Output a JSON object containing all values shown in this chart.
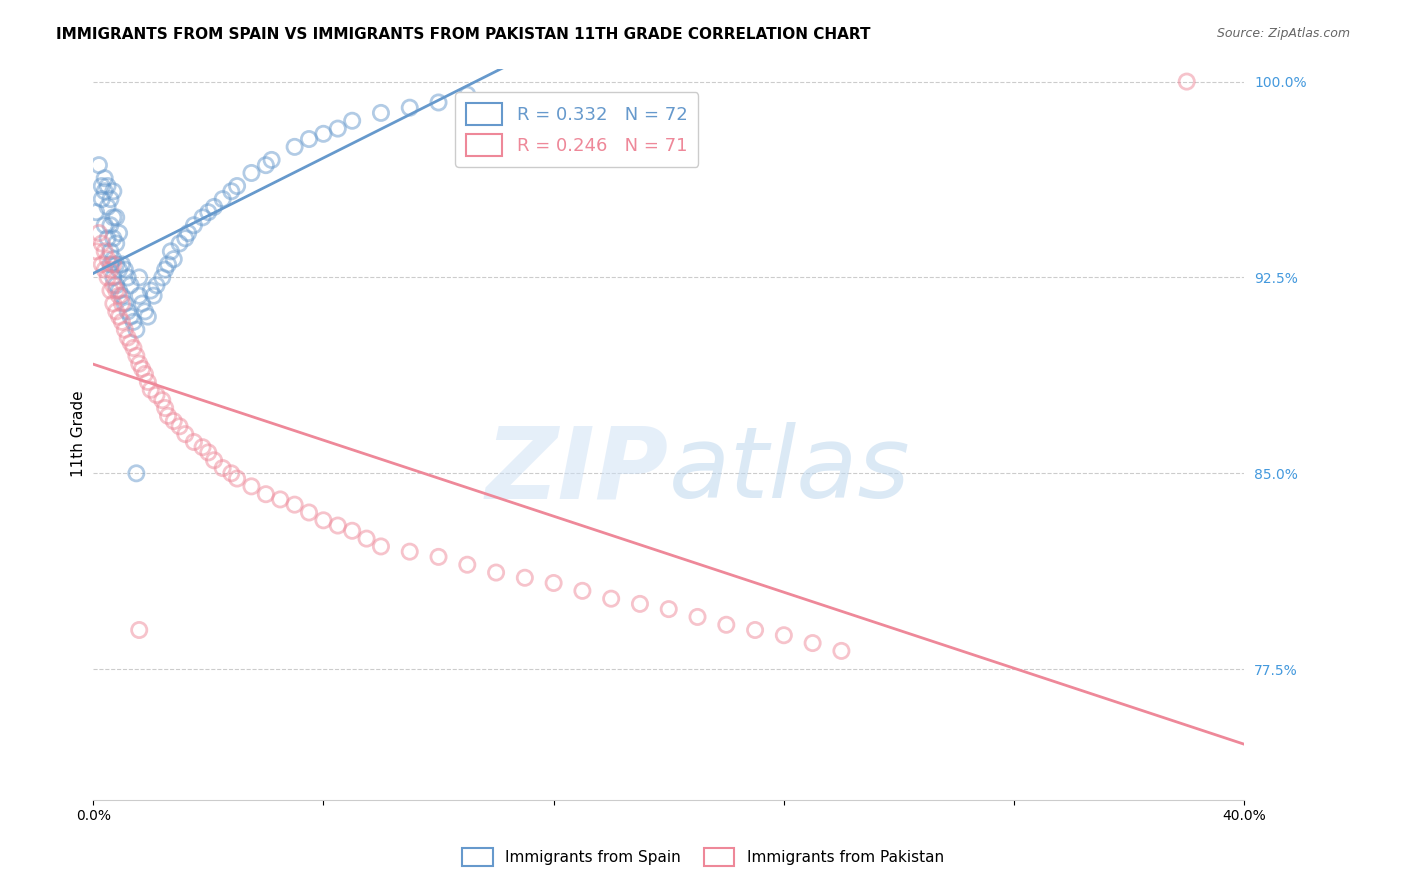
{
  "title": "IMMIGRANTS FROM SPAIN VS IMMIGRANTS FROM PAKISTAN 11TH GRADE CORRELATION CHART",
  "source": "Source: ZipAtlas.com",
  "ylabel": "11th Grade",
  "xlabel": "",
  "xlim": [
    0.0,
    0.4
  ],
  "ylim": [
    0.725,
    1.005
  ],
  "xticks": [
    0.0,
    0.08,
    0.16,
    0.24,
    0.32,
    0.4
  ],
  "xticklabels": [
    "0.0%",
    "",
    "",
    "",
    "",
    "40.0%"
  ],
  "yticks_right": [
    1.0,
    0.925,
    0.85,
    0.775
  ],
  "ytick_right_labels": [
    "100.0%",
    "92.5%",
    "85.0%",
    "77.5%"
  ],
  "grid_color": "#cccccc",
  "background_color": "#ffffff",
  "watermark_text": "ZIPatlas",
  "watermark_color_ZIP": "#d0e4f5",
  "watermark_color_atlas": "#c8dff0",
  "spain_color": "#6699cc",
  "pakistan_color": "#ee8899",
  "legend_R_spain": "R = 0.332",
  "legend_N_spain": "N = 72",
  "legend_R_pakistan": "R = 0.246",
  "legend_N_pakistan": "N = 71",
  "title_fontsize": 11,
  "axis_label_fontsize": 11,
  "tick_fontsize": 10,
  "right_tick_color": "#4499dd",
  "spain_x": [
    0.001,
    0.002,
    0.003,
    0.003,
    0.004,
    0.004,
    0.004,
    0.005,
    0.005,
    0.005,
    0.006,
    0.006,
    0.006,
    0.006,
    0.007,
    0.007,
    0.007,
    0.007,
    0.007,
    0.008,
    0.008,
    0.008,
    0.008,
    0.009,
    0.009,
    0.009,
    0.01,
    0.01,
    0.011,
    0.011,
    0.012,
    0.012,
    0.013,
    0.013,
    0.014,
    0.015,
    0.016,
    0.016,
    0.017,
    0.018,
    0.019,
    0.02,
    0.021,
    0.022,
    0.024,
    0.025,
    0.026,
    0.027,
    0.028,
    0.03,
    0.032,
    0.033,
    0.035,
    0.038,
    0.04,
    0.042,
    0.045,
    0.048,
    0.05,
    0.055,
    0.06,
    0.062,
    0.07,
    0.075,
    0.08,
    0.085,
    0.09,
    0.1,
    0.11,
    0.12,
    0.13,
    0.015
  ],
  "spain_y": [
    0.95,
    0.968,
    0.955,
    0.96,
    0.945,
    0.958,
    0.963,
    0.94,
    0.952,
    0.96,
    0.93,
    0.935,
    0.945,
    0.955,
    0.925,
    0.932,
    0.94,
    0.948,
    0.958,
    0.922,
    0.93,
    0.938,
    0.948,
    0.92,
    0.928,
    0.942,
    0.918,
    0.93,
    0.915,
    0.928,
    0.912,
    0.925,
    0.91,
    0.922,
    0.908,
    0.905,
    0.918,
    0.925,
    0.915,
    0.912,
    0.91,
    0.92,
    0.918,
    0.922,
    0.925,
    0.928,
    0.93,
    0.935,
    0.932,
    0.938,
    0.94,
    0.942,
    0.945,
    0.948,
    0.95,
    0.952,
    0.955,
    0.958,
    0.96,
    0.965,
    0.968,
    0.97,
    0.975,
    0.978,
    0.98,
    0.982,
    0.985,
    0.988,
    0.99,
    0.992,
    0.995,
    0.85
  ],
  "pakistan_x": [
    0.001,
    0.002,
    0.003,
    0.003,
    0.004,
    0.004,
    0.005,
    0.005,
    0.006,
    0.006,
    0.007,
    0.007,
    0.007,
    0.008,
    0.008,
    0.009,
    0.009,
    0.01,
    0.01,
    0.011,
    0.012,
    0.013,
    0.014,
    0.015,
    0.016,
    0.017,
    0.018,
    0.019,
    0.02,
    0.022,
    0.024,
    0.025,
    0.026,
    0.028,
    0.03,
    0.032,
    0.035,
    0.038,
    0.04,
    0.042,
    0.045,
    0.048,
    0.05,
    0.055,
    0.06,
    0.065,
    0.07,
    0.075,
    0.08,
    0.085,
    0.09,
    0.095,
    0.1,
    0.11,
    0.12,
    0.13,
    0.14,
    0.15,
    0.16,
    0.17,
    0.18,
    0.19,
    0.2,
    0.21,
    0.22,
    0.23,
    0.24,
    0.25,
    0.26,
    0.38,
    0.016
  ],
  "pakistan_y": [
    0.935,
    0.942,
    0.93,
    0.938,
    0.928,
    0.935,
    0.925,
    0.932,
    0.92,
    0.928,
    0.915,
    0.922,
    0.93,
    0.912,
    0.92,
    0.91,
    0.918,
    0.908,
    0.915,
    0.905,
    0.902,
    0.9,
    0.898,
    0.895,
    0.892,
    0.89,
    0.888,
    0.885,
    0.882,
    0.88,
    0.878,
    0.875,
    0.872,
    0.87,
    0.868,
    0.865,
    0.862,
    0.86,
    0.858,
    0.855,
    0.852,
    0.85,
    0.848,
    0.845,
    0.842,
    0.84,
    0.838,
    0.835,
    0.832,
    0.83,
    0.828,
    0.825,
    0.822,
    0.82,
    0.818,
    0.815,
    0.812,
    0.81,
    0.808,
    0.805,
    0.802,
    0.8,
    0.798,
    0.795,
    0.792,
    0.79,
    0.788,
    0.785,
    0.782,
    1.0,
    0.79
  ]
}
